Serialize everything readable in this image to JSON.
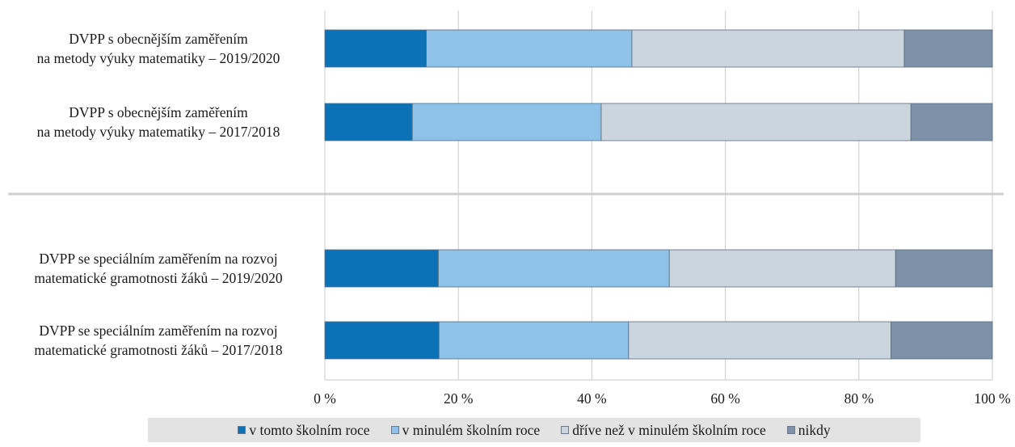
{
  "chart_data": {
    "type": "bar",
    "orientation": "horizontal",
    "stacked": true,
    "categories": [
      {
        "lines": [
          "DVPP s obecnějším zaměřením",
          "na metody výuky matematiky – 2019/2020"
        ],
        "values": [
          15.2,
          30.8,
          40.8,
          13.2
        ]
      },
      {
        "lines": [
          "DVPP s obecnějším zaměřením",
          "na metody výuky matematiky – 2017/2018"
        ],
        "values": [
          13.1,
          28.3,
          46.4,
          12.2
        ]
      },
      {
        "lines": [
          "DVPP se speciálním zaměřením na rozvoj",
          "matematické gramotnosti žáků – 2019/2020"
        ],
        "values": [
          17.0,
          34.6,
          33.9,
          14.5
        ]
      },
      {
        "lines": [
          "DVPP se speciálním zaměřením na rozvoj",
          "matematické gramotnosti žáků – 2017/2018"
        ],
        "values": [
          17.1,
          28.4,
          39.3,
          15.2
        ]
      }
    ],
    "series": [
      {
        "name": "v tomto školním roce",
        "color": "#0c72b8"
      },
      {
        "name": "v minulém školním roce",
        "color": "#8ec2e8"
      },
      {
        "name": "dříve než v minulém školním roce",
        "color": "#cbd5de"
      },
      {
        "name": "nikdy",
        "color": "#7d91a8"
      }
    ],
    "xlim": [
      0,
      100
    ],
    "ticks": [
      "0 %",
      "20 %",
      "40 %",
      "60 %",
      "80 %",
      "100 %"
    ],
    "grid": true,
    "legend_position": "bottom"
  }
}
